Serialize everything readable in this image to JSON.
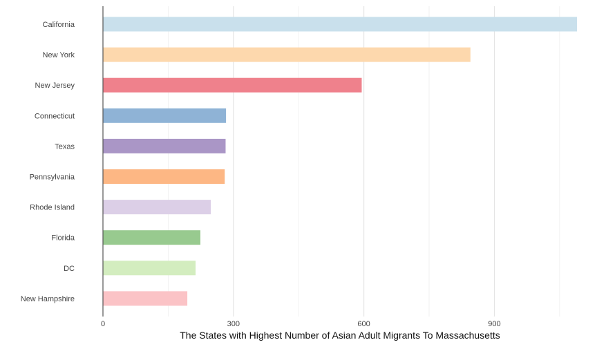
{
  "chart_data": {
    "type": "bar",
    "orientation": "horizontal",
    "title": "",
    "xlabel": "The States with Highest Number of Asian Adult Migrants To Massachusetts",
    "ylabel": "",
    "categories": [
      "California",
      "New York",
      "New Jersey",
      "Connecticut",
      "Texas",
      "Pennsylvania",
      "Rhode Island",
      "Florida",
      "DC",
      "New Hampshire"
    ],
    "values": [
      1090,
      845,
      595,
      283,
      282,
      280,
      248,
      224,
      213,
      194
    ],
    "colors": [
      "#c9e0ec",
      "#fdd8ad",
      "#ef818c",
      "#8fb3d6",
      "#aa96c6",
      "#fdb784",
      "#dccfe7",
      "#98ca8f",
      "#d3edbf",
      "#fbc3c6"
    ],
    "xlim": [
      0,
      1090
    ],
    "xticks": [
      0,
      300,
      600,
      900
    ],
    "xtick_labels": [
      "0",
      "300",
      "600",
      "900"
    ],
    "grid": true,
    "legend": "none"
  }
}
